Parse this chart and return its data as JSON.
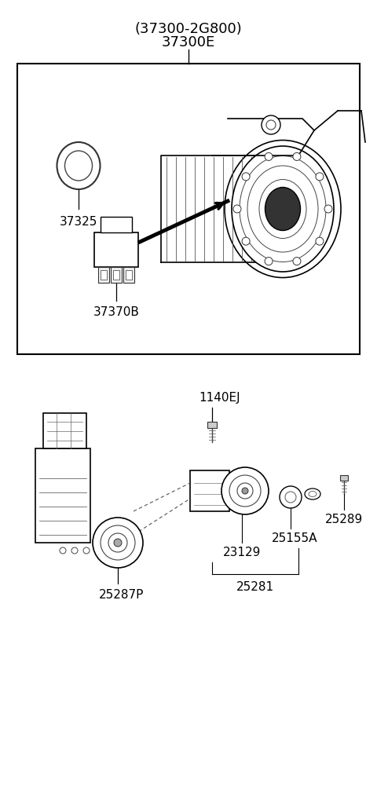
{
  "title": "(37300-2G800)\n37300E",
  "bg_color": "#ffffff",
  "border_color": "#000000",
  "text_color": "#000000",
  "label_37325": "37325",
  "label_37370B": "37370B",
  "label_1140EJ": "1140EJ",
  "label_25287P": "25287P",
  "label_23129": "23129",
  "label_25155A": "25155A",
  "label_25289": "25289",
  "label_25281": "25281",
  "font_size_title": 13,
  "font_size_label": 11
}
